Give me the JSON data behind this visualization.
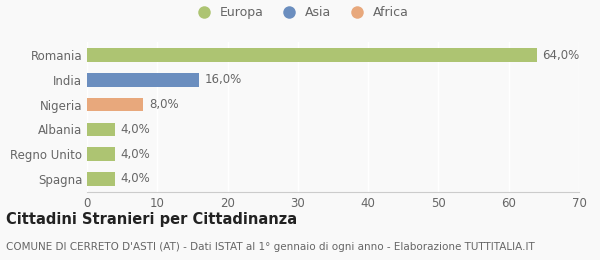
{
  "categories": [
    "Romania",
    "India",
    "Nigeria",
    "Albania",
    "Regno Unito",
    "Spagna"
  ],
  "values": [
    64.0,
    16.0,
    8.0,
    4.0,
    4.0,
    4.0
  ],
  "colors": [
    "#adc472",
    "#6b8ebf",
    "#e8a87c",
    "#adc472",
    "#adc472",
    "#adc472"
  ],
  "labels": [
    "64,0%",
    "16,0%",
    "8,0%",
    "4,0%",
    "4,0%",
    "4,0%"
  ],
  "legend": [
    {
      "label": "Europa",
      "color": "#adc472"
    },
    {
      "label": "Asia",
      "color": "#6b8ebf"
    },
    {
      "label": "Africa",
      "color": "#e8a87c"
    }
  ],
  "xlim": [
    0,
    70
  ],
  "xticks": [
    0,
    10,
    20,
    30,
    40,
    50,
    60,
    70
  ],
  "title": "Cittadini Stranieri per Cittadinanza",
  "subtitle": "COMUNE DI CERRETO D'ASTI (AT) - Dati ISTAT al 1° gennaio di ogni anno - Elaborazione TUTTITALIA.IT",
  "background_color": "#f9f9f9",
  "bar_height": 0.55,
  "label_fontsize": 8.5,
  "title_fontsize": 10.5,
  "subtitle_fontsize": 7.5,
  "tick_fontsize": 8.5,
  "legend_fontsize": 9
}
